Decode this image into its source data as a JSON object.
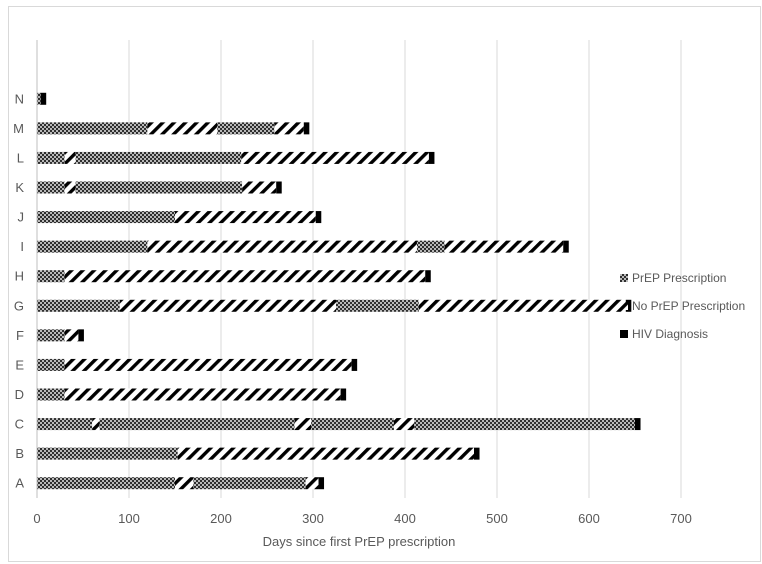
{
  "chart_data": {
    "type": "bar",
    "orientation": "horizontal",
    "stacked": true,
    "title": "",
    "xlabel": "Days since first PrEP prescription",
    "ylabel": "",
    "xlim": [
      0,
      700
    ],
    "xticks": [
      0,
      100,
      200,
      300,
      400,
      500,
      600,
      700
    ],
    "grid": "vertical",
    "legend": {
      "position": "right",
      "entries": [
        {
          "key": "prep",
          "label": "PrEP Prescription"
        },
        {
          "key": "noprep",
          "label": "No PrEP Prescription"
        },
        {
          "key": "hiv",
          "label": "HIV Diagnosis"
        }
      ]
    },
    "categories": [
      "A",
      "B",
      "C",
      "D",
      "E",
      "F",
      "G",
      "H",
      "I",
      "J",
      "K",
      "L",
      "M",
      "N"
    ],
    "segments": [
      [
        {
          "type": "prep",
          "start": 0,
          "end": 150
        },
        {
          "type": "noprep",
          "start": 150,
          "end": 170
        },
        {
          "type": "prep",
          "start": 170,
          "end": 292
        },
        {
          "type": "noprep",
          "start": 292,
          "end": 306
        },
        {
          "type": "hiv",
          "start": 306,
          "end": 312
        }
      ],
      [
        {
          "type": "prep",
          "start": 0,
          "end": 30
        },
        {
          "type": "prep",
          "start": 30,
          "end": 153
        },
        {
          "type": "noprep",
          "start": 153,
          "end": 475
        },
        {
          "type": "hiv",
          "start": 475,
          "end": 481
        }
      ],
      [
        {
          "type": "prep",
          "start": 0,
          "end": 30
        },
        {
          "type": "prep",
          "start": 30,
          "end": 60
        },
        {
          "type": "noprep",
          "start": 60,
          "end": 68
        },
        {
          "type": "prep",
          "start": 68,
          "end": 280
        },
        {
          "type": "noprep",
          "start": 280,
          "end": 298
        },
        {
          "type": "prep",
          "start": 298,
          "end": 388
        },
        {
          "type": "noprep",
          "start": 388,
          "end": 410
        },
        {
          "type": "prep",
          "start": 410,
          "end": 650
        },
        {
          "type": "hiv",
          "start": 650,
          "end": 656
        }
      ],
      [
        {
          "type": "prep",
          "start": 0,
          "end": 30
        },
        {
          "type": "noprep",
          "start": 30,
          "end": 330
        },
        {
          "type": "hiv",
          "start": 330,
          "end": 336
        }
      ],
      [
        {
          "type": "prep",
          "start": 0,
          "end": 30
        },
        {
          "type": "noprep",
          "start": 30,
          "end": 342
        },
        {
          "type": "hiv",
          "start": 342,
          "end": 348
        }
      ],
      [
        {
          "type": "prep",
          "start": 0,
          "end": 30
        },
        {
          "type": "noprep",
          "start": 30,
          "end": 45
        },
        {
          "type": "hiv",
          "start": 45,
          "end": 51
        }
      ],
      [
        {
          "type": "prep",
          "start": 0,
          "end": 90
        },
        {
          "type": "noprep",
          "start": 90,
          "end": 325
        },
        {
          "type": "prep",
          "start": 325,
          "end": 415
        },
        {
          "type": "noprep",
          "start": 415,
          "end": 640
        },
        {
          "type": "hiv",
          "start": 640,
          "end": 646
        }
      ],
      [
        {
          "type": "prep",
          "start": 0,
          "end": 30
        },
        {
          "type": "noprep",
          "start": 30,
          "end": 422
        },
        {
          "type": "hiv",
          "start": 422,
          "end": 428
        }
      ],
      [
        {
          "type": "prep",
          "start": 0,
          "end": 120
        },
        {
          "type": "noprep",
          "start": 120,
          "end": 413
        },
        {
          "type": "prep",
          "start": 413,
          "end": 443
        },
        {
          "type": "noprep",
          "start": 443,
          "end": 572
        },
        {
          "type": "hiv",
          "start": 572,
          "end": 578
        }
      ],
      [
        {
          "type": "prep",
          "start": 0,
          "end": 150
        },
        {
          "type": "noprep",
          "start": 150,
          "end": 303
        },
        {
          "type": "hiv",
          "start": 303,
          "end": 309
        }
      ],
      [
        {
          "type": "prep",
          "start": 0,
          "end": 30
        },
        {
          "type": "noprep",
          "start": 30,
          "end": 42
        },
        {
          "type": "prep",
          "start": 42,
          "end": 223
        },
        {
          "type": "noprep",
          "start": 223,
          "end": 260
        },
        {
          "type": "hiv",
          "start": 260,
          "end": 266
        }
      ],
      [
        {
          "type": "prep",
          "start": 0,
          "end": 30
        },
        {
          "type": "noprep",
          "start": 30,
          "end": 42
        },
        {
          "type": "prep",
          "start": 42,
          "end": 222
        },
        {
          "type": "noprep",
          "start": 222,
          "end": 426
        },
        {
          "type": "hiv",
          "start": 426,
          "end": 432
        }
      ],
      [
        {
          "type": "prep",
          "start": 0,
          "end": 120
        },
        {
          "type": "noprep",
          "start": 120,
          "end": 196
        },
        {
          "type": "prep",
          "start": 196,
          "end": 258
        },
        {
          "type": "noprep",
          "start": 258,
          "end": 290
        },
        {
          "type": "hiv",
          "start": 290,
          "end": 296
        }
      ],
      [
        {
          "type": "prep",
          "start": 0,
          "end": 4
        },
        {
          "type": "hiv",
          "start": 4,
          "end": 10
        }
      ]
    ]
  }
}
